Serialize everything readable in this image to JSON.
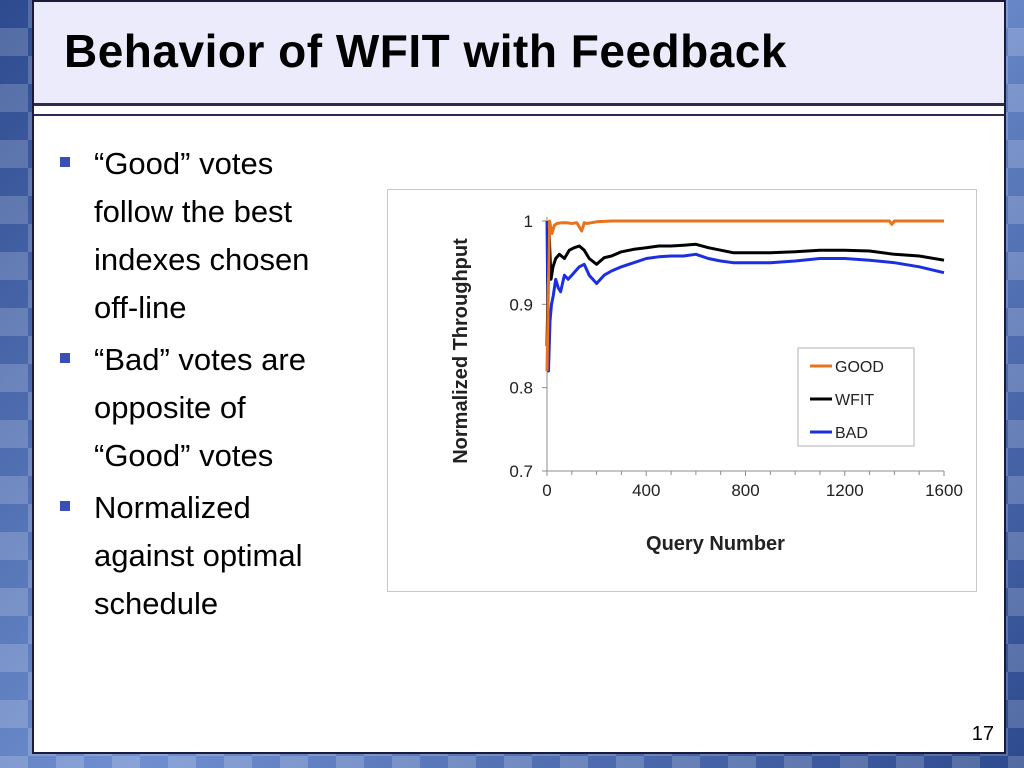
{
  "slide": {
    "title": "Behavior of WFIT with Feedback",
    "bullets": [
      [
        "“Good” votes",
        "follow the best",
        "indexes chosen",
        "off-line"
      ],
      [
        "“Bad” votes are",
        "opposite of",
        "“Good” votes"
      ],
      [
        "Normalized",
        "against optimal",
        "schedule"
      ]
    ],
    "page_number": "17"
  },
  "chart_data": {
    "type": "line",
    "title": "",
    "xlabel": "Query Number",
    "ylabel": "Normalized Throughput",
    "xlim": [
      0,
      1600
    ],
    "ylim": [
      0.7,
      1.0
    ],
    "xticks": [
      0,
      400,
      800,
      1200,
      1600
    ],
    "yticks": [
      0.7,
      0.8,
      0.9,
      1.0
    ],
    "ytick_labels": [
      "0.7",
      "0.8",
      "0.9",
      "1"
    ],
    "grid": false,
    "legend_position": "bottom-right",
    "series": [
      {
        "name": "GOOD",
        "color": "#e9731c",
        "x": [
          0,
          10,
          20,
          30,
          40,
          60,
          80,
          100,
          120,
          140,
          150,
          160,
          180,
          200,
          260,
          400,
          600,
          800,
          1000,
          1200,
          1380,
          1390,
          1400,
          1500,
          1600
        ],
        "y": [
          0.82,
          1.0,
          0.985,
          0.995,
          0.997,
          0.998,
          0.998,
          0.997,
          0.998,
          0.988,
          0.998,
          0.997,
          0.998,
          0.999,
          1.0,
          1.0,
          1.0,
          1.0,
          1.0,
          1.0,
          1.0,
          0.996,
          1.0,
          1.0,
          1.0
        ]
      },
      {
        "name": "WFIT",
        "color": "#000000",
        "x": [
          0,
          8,
          16,
          24,
          35,
          50,
          70,
          90,
          110,
          130,
          150,
          170,
          200,
          230,
          260,
          300,
          350,
          400,
          450,
          500,
          550,
          600,
          650,
          700,
          750,
          800,
          900,
          1000,
          1100,
          1200,
          1300,
          1400,
          1500,
          1600
        ],
        "y": [
          0.85,
          0.99,
          0.93,
          0.945,
          0.955,
          0.96,
          0.955,
          0.965,
          0.968,
          0.97,
          0.965,
          0.955,
          0.948,
          0.956,
          0.958,
          0.963,
          0.966,
          0.968,
          0.97,
          0.97,
          0.971,
          0.972,
          0.968,
          0.965,
          0.962,
          0.962,
          0.962,
          0.963,
          0.965,
          0.965,
          0.964,
          0.96,
          0.958,
          0.953
        ]
      },
      {
        "name": "BAD",
        "color": "#1c2fe0",
        "x": [
          0,
          6,
          12,
          18,
          25,
          35,
          45,
          55,
          70,
          85,
          100,
          115,
          130,
          150,
          170,
          200,
          230,
          260,
          300,
          350,
          400,
          450,
          500,
          550,
          600,
          650,
          700,
          750,
          800,
          900,
          1000,
          1100,
          1200,
          1300,
          1400,
          1500,
          1600
        ],
        "y": [
          1.0,
          0.82,
          0.88,
          0.9,
          0.91,
          0.93,
          0.92,
          0.915,
          0.935,
          0.93,
          0.935,
          0.94,
          0.945,
          0.948,
          0.935,
          0.925,
          0.935,
          0.94,
          0.945,
          0.95,
          0.955,
          0.957,
          0.958,
          0.958,
          0.96,
          0.955,
          0.952,
          0.95,
          0.95,
          0.95,
          0.952,
          0.955,
          0.955,
          0.953,
          0.95,
          0.945,
          0.938
        ]
      }
    ]
  }
}
